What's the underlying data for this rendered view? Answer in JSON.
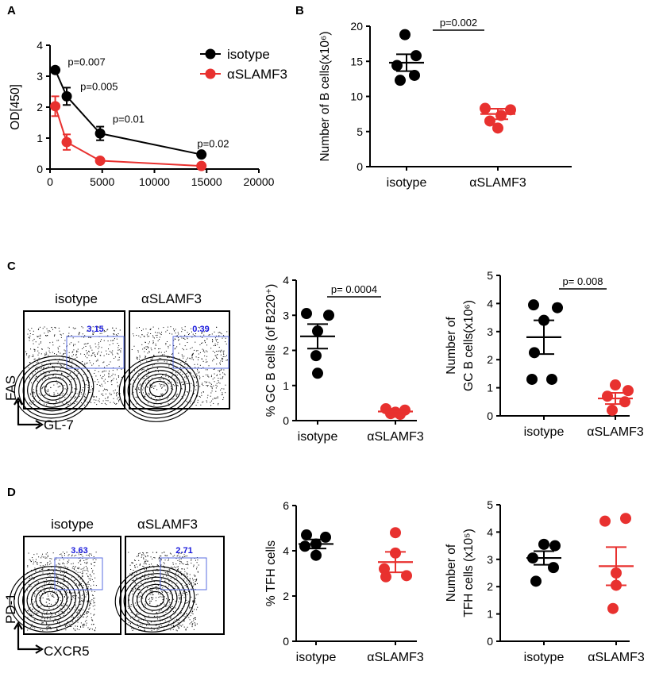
{
  "colors": {
    "isotype": "#000000",
    "slamf3": "#e8312f",
    "gate": "#5a6ee0",
    "gate_text": "#1a1adc"
  },
  "panels": {
    "A": {
      "label": "A"
    },
    "B": {
      "label": "B"
    },
    "C": {
      "label": "C"
    },
    "D": {
      "label": "D"
    }
  },
  "flow": {
    "C": {
      "left_title": "isotype",
      "right_title": "αSLAMF3",
      "left_gate": "3.15",
      "right_gate": "0.39",
      "y_axis": "FAS",
      "x_axis": "GL-7"
    },
    "D": {
      "left_title": "isotype",
      "right_title": "αSLAMF3",
      "left_gate": "3.63",
      "right_gate": "2.71",
      "y_axis": "PD-1",
      "x_axis": "CXCR5"
    }
  },
  "chart_data": [
    {
      "id": "A",
      "type": "line",
      "title": "",
      "xlabel": "",
      "ylabel": "OD[450]",
      "xlim": [
        0,
        20000
      ],
      "ylim": [
        0,
        4
      ],
      "xticks": [
        "0",
        "5000",
        "10000",
        "15000",
        "20000"
      ],
      "yticks": [
        "0",
        "1",
        "2",
        "3",
        "4"
      ],
      "legend": [
        "isotype",
        "αSLAMF3"
      ],
      "series": [
        {
          "name": "isotype",
          "color": "#000000",
          "points": [
            {
              "x": 500,
              "y": 3.2,
              "err": 0.08
            },
            {
              "x": 1600,
              "y": 2.35,
              "err": 0.28
            },
            {
              "x": 4800,
              "y": 1.15,
              "err": 0.22
            },
            {
              "x": 14500,
              "y": 0.47,
              "err": 0.04
            }
          ]
        },
        {
          "name": "αSLAMF3",
          "color": "#e8312f",
          "points": [
            {
              "x": 500,
              "y": 2.03,
              "err": 0.32
            },
            {
              "x": 1600,
              "y": 0.87,
              "err": 0.25
            },
            {
              "x": 4800,
              "y": 0.27,
              "err": 0.05
            },
            {
              "x": 14500,
              "y": 0.1,
              "err": 0.02
            }
          ]
        }
      ],
      "annotations": [
        {
          "text": "p=0.007",
          "x": 1700,
          "y": 3.35
        },
        {
          "text": "p=0.005",
          "x": 2900,
          "y": 2.55
        },
        {
          "text": "p=0.01",
          "x": 6000,
          "y": 1.5
        },
        {
          "text": "p=0.02",
          "x": 14100,
          "y": 0.7
        }
      ]
    },
    {
      "id": "B",
      "type": "scatter",
      "ylabel": "Number of B cells(x10⁶)",
      "ylim": [
        0,
        20
      ],
      "yticks": [
        "0",
        "5",
        "10",
        "15",
        "20"
      ],
      "categories": [
        "isotype",
        "αSLAMF3"
      ],
      "pvalue": "p=0.002",
      "groups": [
        {
          "name": "isotype",
          "color": "#000000",
          "values": [
            18.8,
            15.8,
            14.4,
            13.0,
            12.3
          ],
          "mean": 14.8,
          "sem": 1.2
        },
        {
          "name": "αSLAMF3",
          "color": "#e8312f",
          "values": [
            8.3,
            8.1,
            7.3,
            6.5,
            5.5
          ],
          "mean": 7.5,
          "sem": 0.75
        }
      ]
    },
    {
      "id": "C2",
      "type": "scatter",
      "ylabel": "% GC B cells (of B220⁺)",
      "ylim": [
        0,
        4
      ],
      "yticks": [
        "0",
        "1",
        "2",
        "3",
        "4"
      ],
      "categories": [
        "isotype",
        "αSLAMF3"
      ],
      "pvalue": "p= 0.0004",
      "groups": [
        {
          "name": "isotype",
          "color": "#000000",
          "values": [
            3.05,
            3.0,
            2.55,
            1.85,
            1.35
          ],
          "mean": 2.4,
          "sem": 0.35
        },
        {
          "name": "αSLAMF3",
          "color": "#e8312f",
          "values": [
            0.34,
            0.3,
            0.24,
            0.2,
            0.18
          ],
          "mean": 0.26,
          "sem": 0.04
        }
      ]
    },
    {
      "id": "C3",
      "type": "scatter",
      "ylabel": "Number of GC B cells(x10⁶)",
      "ylim": [
        0,
        5
      ],
      "yticks": [
        "0",
        "1",
        "2",
        "3",
        "4",
        "5"
      ],
      "categories": [
        "isotype",
        "αSLAMF3"
      ],
      "pvalue": "p= 0.008",
      "groups": [
        {
          "name": "isotype",
          "color": "#000000",
          "values": [
            3.95,
            3.85,
            3.4,
            2.25,
            1.3,
            1.3
          ],
          "mean": 2.8,
          "sem": 0.6
        },
        {
          "name": "αSLAMF3",
          "color": "#e8312f",
          "values": [
            1.1,
            0.9,
            0.7,
            0.5,
            0.2
          ],
          "mean": 0.62,
          "sem": 0.2
        }
      ]
    },
    {
      "id": "D2",
      "type": "scatter",
      "ylabel": "% TFH cells",
      "ylim": [
        0,
        6
      ],
      "yticks": [
        "0",
        "2",
        "4",
        "6"
      ],
      "categories": [
        "isotype",
        "αSLAMF3"
      ],
      "groups": [
        {
          "name": "isotype",
          "color": "#000000",
          "values": [
            4.7,
            4.6,
            4.3,
            4.2,
            3.8
          ],
          "mean": 4.3,
          "sem": 0.2
        },
        {
          "name": "αSLAMF3",
          "color": "#e8312f",
          "values": [
            4.8,
            3.9,
            3.2,
            2.9,
            2.85
          ],
          "mean": 3.5,
          "sem": 0.45
        }
      ]
    },
    {
      "id": "D3",
      "type": "scatter",
      "ylabel": "Number of TFH cells (x10⁵)",
      "ylim": [
        0,
        5
      ],
      "yticks": [
        "0",
        "1",
        "2",
        "3",
        "4",
        "5"
      ],
      "categories": [
        "isotype",
        "αSLAMF3"
      ],
      "groups": [
        {
          "name": "isotype",
          "color": "#000000",
          "values": [
            3.55,
            3.5,
            3.05,
            2.7,
            2.2
          ],
          "mean": 3.05,
          "sem": 0.25
        },
        {
          "name": "αSLAMF3",
          "color": "#e8312f",
          "values": [
            4.5,
            4.4,
            2.5,
            2.05,
            1.2
          ],
          "mean": 2.75,
          "sem": 0.7
        }
      ]
    }
  ]
}
